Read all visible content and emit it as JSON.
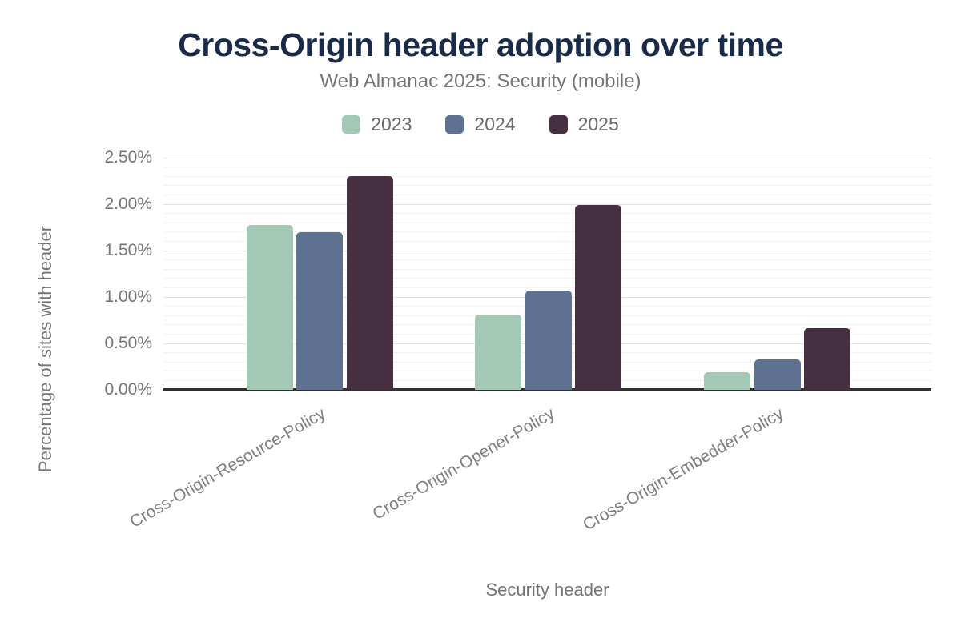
{
  "header": {
    "title": "Cross-Origin header adoption over time",
    "subtitle": "Web Almanac 2025: Security (mobile)"
  },
  "chart_data": {
    "type": "bar",
    "title": "Cross-Origin header adoption over time",
    "subtitle": "Web Almanac 2025: Security (mobile)",
    "xlabel": "Security header",
    "ylabel": "Percentage of sites with header",
    "categories": [
      "Cross-Origin-Resource-Policy",
      "Cross-Origin-Opener-Policy",
      "Cross-Origin-Embedder-Policy"
    ],
    "series": [
      {
        "name": "2023",
        "color": "#a3c9b6",
        "values": [
          1.78,
          0.81,
          0.19
        ]
      },
      {
        "name": "2024",
        "color": "#5f7190",
        "values": [
          1.7,
          1.07,
          0.33
        ]
      },
      {
        "name": "2025",
        "color": "#472f42",
        "values": [
          2.3,
          1.99,
          0.66
        ]
      }
    ],
    "y_ticks": [
      {
        "value": 0.0,
        "label": "0.00%"
      },
      {
        "value": 0.5,
        "label": "0.50%"
      },
      {
        "value": 1.0,
        "label": "1.00%"
      },
      {
        "value": 1.5,
        "label": "1.50%"
      },
      {
        "value": 2.0,
        "label": "2.00%"
      },
      {
        "value": 2.5,
        "label": "2.50%"
      }
    ],
    "ylim": [
      0,
      2.5
    ],
    "grid": true,
    "legend_position": "top"
  },
  "colors": {
    "title": "#1a2b49",
    "text": "#757575",
    "axis_line": "#2f3033",
    "grid_minor": "#f2f2f2",
    "grid_major": "#e2e2e2"
  }
}
